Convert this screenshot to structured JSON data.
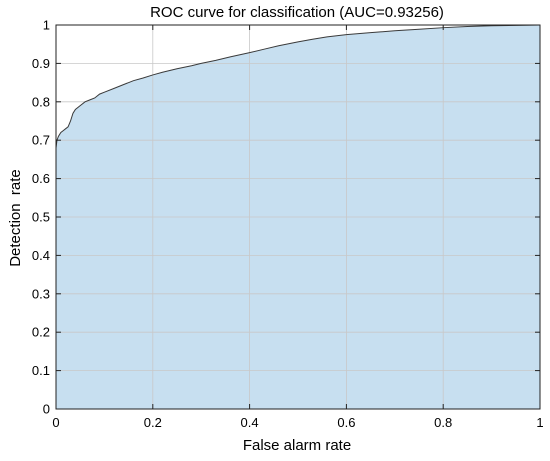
{
  "chart_data": {
    "type": "area",
    "title": "ROC curve for classification (AUC=0.93256)",
    "xlabel": "False alarm rate",
    "ylabel": "Detection  rate",
    "xlim": [
      0,
      1
    ],
    "ylim": [
      0,
      1
    ],
    "x_ticks": [
      "0",
      "0.2",
      "0.4",
      "0.6",
      "0.8",
      "1"
    ],
    "y_ticks": [
      "0",
      "0.1",
      "0.2",
      "0.3",
      "0.4",
      "0.5",
      "0.6",
      "0.7",
      "0.8",
      "0.9",
      "1"
    ],
    "grid": true,
    "legend": "none",
    "colors": {
      "fill": "#c7dff0",
      "line": "#3a3a3a"
    },
    "series": [
      {
        "x": [
          0,
          0.002,
          0.005,
          0.01,
          0.015,
          0.02,
          0.025,
          0.03,
          0.035,
          0.04,
          0.05,
          0.06,
          0.07,
          0.08,
          0.09,
          0.1,
          0.12,
          0.14,
          0.16,
          0.18,
          0.2,
          0.22,
          0.25,
          0.28,
          0.3,
          0.33,
          0.36,
          0.4,
          0.43,
          0.46,
          0.5,
          0.53,
          0.56,
          0.6,
          0.65,
          0.7,
          0.75,
          0.8,
          0.85,
          0.9,
          0.95,
          1.0
        ],
        "y": [
          0.68,
          0.7,
          0.71,
          0.72,
          0.725,
          0.73,
          0.735,
          0.75,
          0.77,
          0.78,
          0.79,
          0.8,
          0.805,
          0.81,
          0.82,
          0.825,
          0.835,
          0.845,
          0.855,
          0.862,
          0.87,
          0.877,
          0.886,
          0.894,
          0.9,
          0.908,
          0.917,
          0.928,
          0.937,
          0.946,
          0.956,
          0.963,
          0.969,
          0.975,
          0.98,
          0.985,
          0.989,
          0.993,
          0.996,
          0.998,
          0.999,
          1.0
        ]
      }
    ]
  }
}
